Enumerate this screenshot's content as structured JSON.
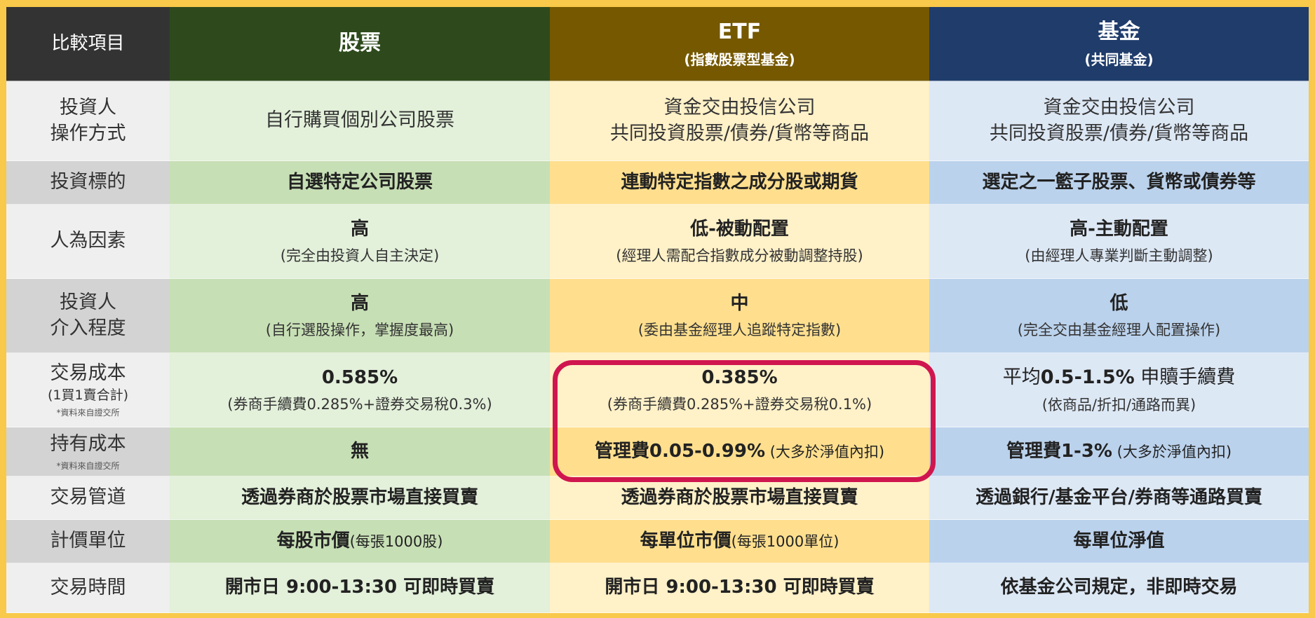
{
  "header": {
    "label": "比較項目",
    "stock": "股票",
    "etf": "ETF",
    "etf_sub": "(指數股票型基金)",
    "fund": "基金",
    "fund_sub": "(共同基金)"
  },
  "rows": {
    "operation": {
      "label_1": "投資人",
      "label_2": "操作方式",
      "stock": "自行購買個別公司股票",
      "etf_1": "資金交由投信公司",
      "etf_2": "共同投資股票/債券/貨幣等商品",
      "fund_1": "資金交由投信公司",
      "fund_2": "共同投資股票/債券/貨幣等商品"
    },
    "target": {
      "label": "投資標的",
      "stock": "自選特定公司股票",
      "etf": "連動特定指數之成分股或期貨",
      "fund": "選定之一籃子股票、貨幣或債券等"
    },
    "human": {
      "label": "人為因素",
      "stock_main": "高",
      "stock_sub": "(完全由投資人自主決定)",
      "etf_main": "低-被動配置",
      "etf_sub": "(經理人需配合指數成分被動調整持股)",
      "fund_main": "高-主動配置",
      "fund_sub": "(由經理人專業判斷主動調整)"
    },
    "involvement": {
      "label_1": "投資人",
      "label_2": "介入程度",
      "stock_main": "高",
      "stock_sub": "(自行選股操作，掌握度最高)",
      "etf_main": "中",
      "etf_sub": "(委由基金經理人追蹤特定指數)",
      "fund_main": "低",
      "fund_sub": "(完全交由基金經理人配置操作)"
    },
    "trade_cost": {
      "label_1": "交易成本",
      "label_2": "(1買1賣合計)",
      "label_note": "*資料來自證交所",
      "stock_main": "0.585%",
      "stock_sub": "(券商手續費0.285%+證券交易稅0.3%)",
      "etf_main": "0.385%",
      "etf_sub": "(券商手續費0.285%+證券交易稅0.1%)",
      "fund_prefix": "平均",
      "fund_bold": "0.5-1.5%",
      "fund_suffix": " 申贖手續費",
      "fund_sub": "(依商品/折扣/通路而異)"
    },
    "holding_cost": {
      "label": "持有成本",
      "label_note": "*資料來自證交所",
      "stock": "無",
      "etf_bold": "管理費0.05-0.99%",
      "etf_note": " (大多於淨值內扣)",
      "fund_bold": "管理費1-3%",
      "fund_note": " (大多於淨值內扣)"
    },
    "channel": {
      "label": "交易管道",
      "stock": "透過券商於股票市場直接買賣",
      "etf": "透過券商於股票市場直接買賣",
      "fund": "透過銀行/基金平台/券商等通路買賣"
    },
    "pricing": {
      "label": "計價單位",
      "stock_bold": "每股市價",
      "stock_note": "(每張1000股)",
      "etf_bold": "每單位市價",
      "etf_note": "(每張1000單位)",
      "fund": "每單位淨值"
    },
    "hours": {
      "label": "交易時間",
      "stock": "開市日 9:00-13:30 可即時買賣",
      "etf": "開市日 9:00-13:30 可即時買賣",
      "fund": "依基金公司規定，非即時交易"
    }
  },
  "colors": {
    "background": "#F8C94A",
    "stock_header": "#2E4A1C",
    "etf_header": "#755800",
    "fund_header": "#1F3C6B",
    "highlight_border": "#D0164E"
  }
}
